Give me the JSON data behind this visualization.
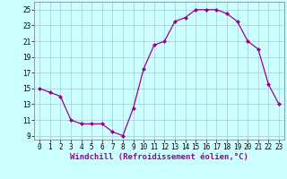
{
  "x": [
    0,
    1,
    2,
    3,
    4,
    5,
    6,
    7,
    8,
    9,
    10,
    11,
    12,
    13,
    14,
    15,
    16,
    17,
    18,
    19,
    20,
    21,
    22,
    23
  ],
  "y": [
    15,
    14.5,
    14,
    11,
    10.5,
    10.5,
    10.5,
    9.5,
    9,
    12.5,
    17.5,
    20.5,
    21,
    23.5,
    24,
    25,
    25,
    25,
    24.5,
    23.5,
    21,
    20,
    15.5,
    13
  ],
  "line_color": "#990099",
  "marker": "D",
  "marker_size": 2,
  "bg_color": "#ccffff",
  "grid_color": "#aacccc",
  "xlabel": "Windchill (Refroidissement éolien,°C)",
  "xlim": [
    -0.5,
    23.5
  ],
  "ylim": [
    8.5,
    26
  ],
  "yticks": [
    9,
    11,
    13,
    15,
    17,
    19,
    21,
    23,
    25
  ],
  "xtick_labels": [
    "0",
    "1",
    "2",
    "3",
    "4",
    "5",
    "6",
    "7",
    "8",
    "9",
    "10",
    "11",
    "12",
    "13",
    "14",
    "15",
    "16",
    "17",
    "18",
    "19",
    "20",
    "21",
    "22",
    "23"
  ],
  "tick_fontsize": 5.5,
  "xlabel_fontsize": 6.5
}
